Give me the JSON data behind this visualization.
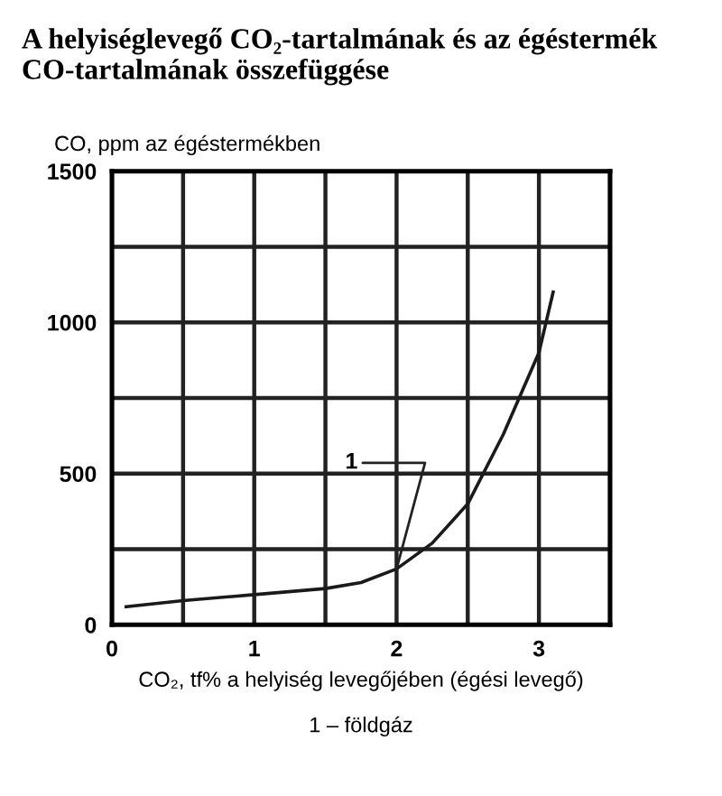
{
  "chart_data": {
    "type": "line",
    "title": "A helyiséglevegő CO₂-tartalmának és az égéstermék CO-tartalmának összefüggése",
    "xlabel": "CO₂, tf% a helyiség levegőjében (égési levegő)",
    "ylabel": "CO, ppm az égéstermékben",
    "annotations": [
      {
        "text": "1",
        "x": 2,
        "y": 185
      },
      "1 – földgáz"
    ],
    "x": [
      0.1,
      0.5,
      1.0,
      1.5,
      1.75,
      2.0,
      2.25,
      2.5,
      2.75,
      3.0,
      3.1
    ],
    "series": [
      {
        "color": "#1a1a1a",
        "values": [
          60,
          80,
          100,
          120,
          140,
          185,
          270,
          400,
          630,
          900,
          1100
        ]
      }
    ],
    "xlim": [
      0,
      3.5
    ],
    "xticks": [
      0,
      {
        "value": 0.5,
        "label": null
      },
      1,
      {
        "value": 1.5,
        "label": null
      },
      2,
      {
        "value": 2.5,
        "label": null
      },
      3,
      {
        "value": 3.5,
        "label": null
      }
    ],
    "ylim": [
      0,
      1500
    ],
    "yticks": [
      0,
      {
        "value": 250,
        "label": null
      },
      500,
      {
        "value": 750,
        "label": null
      },
      1000,
      {
        "value": 1250,
        "label": null
      },
      1500
    ],
    "grid": true,
    "marker": "none",
    "line_style": "solid",
    "legend": false
  }
}
